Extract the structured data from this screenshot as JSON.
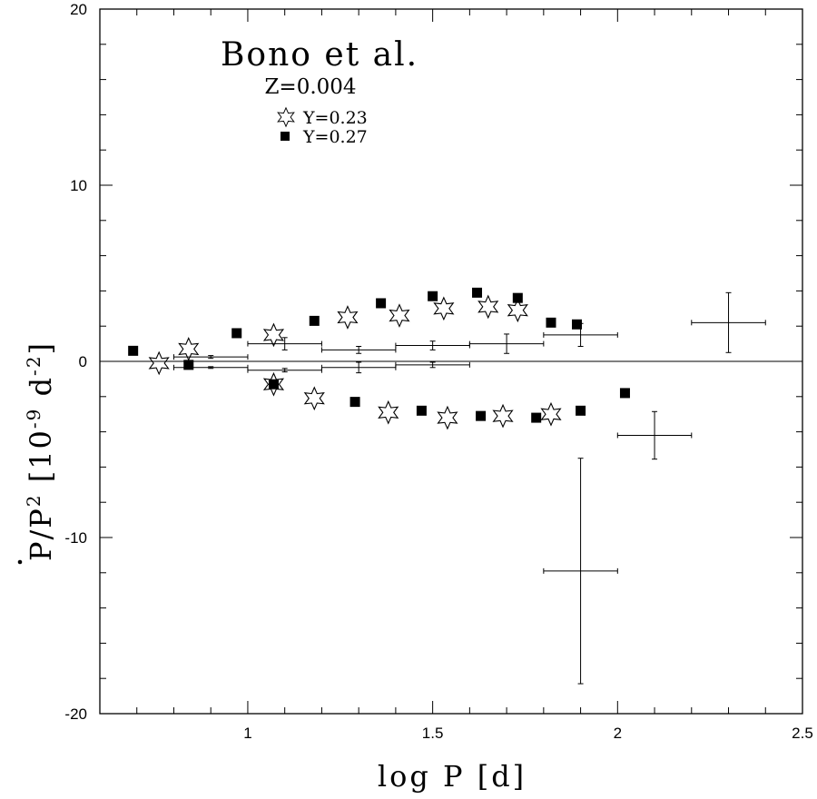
{
  "chart_data": {
    "type": "scatter",
    "title": "Bono et al.",
    "subtitle": "Z=0.004",
    "xlabel": "log P [d]",
    "ylabel_prefix": "P/P",
    "ylabel_exp": "2",
    "ylabel_bracket": "[10",
    "ylabel_exp2": "-9",
    "ylabel_unit": "d",
    "ylabel_exp3": "-2",
    "ylabel_close": "]",
    "xlim": [
      0.6,
      2.5
    ],
    "ylim": [
      -20,
      20
    ],
    "xticks": [
      1,
      1.5,
      2,
      2.5
    ],
    "xtick_labels": [
      "1",
      "1.5",
      "2",
      "2.5"
    ],
    "yticks": [
      -20,
      -10,
      0,
      10,
      20
    ],
    "ytick_labels": [
      "-20",
      "-10",
      "0",
      "10",
      "20"
    ],
    "reference_line_y": 0,
    "legend_position": "top-left",
    "series": [
      {
        "name": "Y=0.23",
        "marker": "star",
        "color": "#000000",
        "points": [
          {
            "x": 0.76,
            "y": -0.1
          },
          {
            "x": 0.84,
            "y": 0.7
          },
          {
            "x": 1.07,
            "y": 1.5
          },
          {
            "x": 1.07,
            "y": -1.3
          },
          {
            "x": 1.18,
            "y": -2.1
          },
          {
            "x": 1.27,
            "y": 2.5
          },
          {
            "x": 1.38,
            "y": -2.9
          },
          {
            "x": 1.41,
            "y": 2.6
          },
          {
            "x": 1.53,
            "y": 3.0
          },
          {
            "x": 1.54,
            "y": -3.2
          },
          {
            "x": 1.65,
            "y": 3.1
          },
          {
            "x": 1.69,
            "y": -3.1
          },
          {
            "x": 1.73,
            "y": 2.9
          },
          {
            "x": 1.82,
            "y": -3.0
          }
        ]
      },
      {
        "name": "Y=0.27",
        "marker": "square",
        "color": "#000000",
        "points": [
          {
            "x": 0.69,
            "y": 0.6
          },
          {
            "x": 0.84,
            "y": -0.2
          },
          {
            "x": 0.97,
            "y": 1.6
          },
          {
            "x": 1.07,
            "y": -1.3
          },
          {
            "x": 1.18,
            "y": 2.3
          },
          {
            "x": 1.29,
            "y": -2.3
          },
          {
            "x": 1.36,
            "y": 3.3
          },
          {
            "x": 1.47,
            "y": -2.8
          },
          {
            "x": 1.5,
            "y": 3.7
          },
          {
            "x": 1.62,
            "y": 3.9
          },
          {
            "x": 1.63,
            "y": -3.1
          },
          {
            "x": 1.73,
            "y": 3.6
          },
          {
            "x": 1.78,
            "y": -3.2
          },
          {
            "x": 1.82,
            "y": 2.2
          },
          {
            "x": 1.89,
            "y": 2.1
          },
          {
            "x": 1.9,
            "y": -2.8
          },
          {
            "x": 2.02,
            "y": -1.8
          }
        ]
      }
    ],
    "error_bars": [
      {
        "x": 0.9,
        "xerr": 0.1,
        "y": 0.25,
        "yerr": 0.08
      },
      {
        "x": 0.9,
        "xerr": 0.1,
        "y": -0.35,
        "yerr": 0.05
      },
      {
        "x": 1.1,
        "xerr": 0.1,
        "y": 1.0,
        "yerr": 0.35
      },
      {
        "x": 1.1,
        "xerr": 0.1,
        "y": -0.5,
        "yerr": 0.1
      },
      {
        "x": 1.3,
        "xerr": 0.1,
        "y": 0.65,
        "yerr": 0.2
      },
      {
        "x": 1.3,
        "xerr": 0.1,
        "y": -0.35,
        "yerr": 0.3
      },
      {
        "x": 1.5,
        "xerr": 0.1,
        "y": 0.9,
        "yerr": 0.25
      },
      {
        "x": 1.5,
        "xerr": 0.1,
        "y": -0.2,
        "yerr": 0.15
      },
      {
        "x": 1.7,
        "xerr": 0.1,
        "y": 1.0,
        "yerr": 0.55
      },
      {
        "x": 1.9,
        "xerr": 0.1,
        "y": 1.5,
        "yerr": 0.65
      },
      {
        "x": 1.9,
        "xerr": 0.1,
        "y": -11.9,
        "yerr": 6.4
      },
      {
        "x": 2.1,
        "xerr": 0.1,
        "y": -4.2,
        "yerr": 1.35
      },
      {
        "x": 2.3,
        "xerr": 0.1,
        "y": 2.2,
        "yerr": 1.7
      }
    ]
  }
}
